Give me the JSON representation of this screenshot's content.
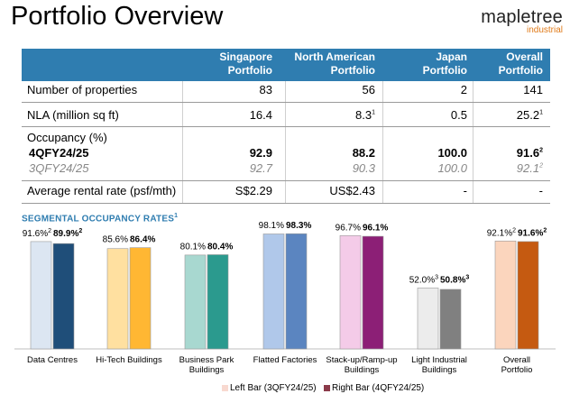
{
  "header": {
    "title": "Portfolio Overview",
    "logo_brand": "mapletree",
    "logo_sub": "industrial"
  },
  "table": {
    "columns": [
      {
        "l1": "Singapore",
        "l2": "Portfolio"
      },
      {
        "l1": "North American",
        "l2": "Portfolio"
      },
      {
        "l1": "Japan",
        "l2": "Portfolio"
      },
      {
        "l1": "Overall",
        "l2": "Portfolio"
      }
    ],
    "rows": {
      "properties": {
        "label": "Number of properties",
        "values": [
          "83",
          "56",
          "2",
          "141"
        ]
      },
      "nla": {
        "label": "NLA (million sq ft)",
        "values": [
          "16.4",
          "8.3",
          "0.5",
          "25.2"
        ],
        "sups": [
          "",
          "1",
          "",
          "1"
        ]
      },
      "occupancy": {
        "label": "Occupancy (%)"
      },
      "q4": {
        "label": "4QFY24/25",
        "values": [
          "92.9",
          "88.2",
          "100.0",
          "91.6"
        ],
        "sups": [
          "",
          "",
          "",
          "2"
        ]
      },
      "q3": {
        "label": "3QFY24/25",
        "values": [
          "92.7",
          "90.3",
          "100.0",
          "92.1"
        ],
        "sups": [
          "",
          "",
          "",
          "2"
        ]
      },
      "rent": {
        "label": "Average rental rate (psf/mth)",
        "values": [
          "S$2.29",
          "US$2.43",
          "-",
          "-"
        ]
      }
    }
  },
  "chart_data": {
    "type": "bar",
    "title": "SEGMENTAL OCCUPANCY RATES",
    "title_sup": "1",
    "categories": [
      "Data Centres",
      "Hi-Tech Buildings",
      "Business Park Buildings",
      "Flatted Factories",
      "Stack-up/Ramp-up Buildings",
      "Light Industrial Buildings",
      "Overall Portfolio"
    ],
    "category_lines": [
      [
        "Data Centres"
      ],
      [
        "Hi-Tech Buildings"
      ],
      [
        "Business Park",
        "Buildings"
      ],
      [
        "Flatted Factories"
      ],
      [
        "Stack-up/Ramp-up",
        "Buildings"
      ],
      [
        "Light Industrial",
        "Buildings"
      ],
      [
        "Overall",
        "Portfolio"
      ]
    ],
    "series": [
      {
        "name": "Left Bar (3QFY24/25)",
        "values": [
          91.6,
          85.6,
          80.1,
          98.1,
          96.7,
          52.0,
          92.1
        ],
        "labels": [
          "91.6%",
          "85.6%",
          "80.1%",
          "98.1%",
          "96.7%",
          "52.0%",
          "92.1%"
        ],
        "sups": [
          "2",
          "",
          "",
          "",
          "",
          "3",
          "2"
        ]
      },
      {
        "name": "Right Bar (4QFY24/25)",
        "values": [
          89.9,
          86.4,
          80.4,
          98.3,
          96.1,
          50.8,
          91.6
        ],
        "labels": [
          "89.9%",
          "86.4%",
          "80.4%",
          "98.3%",
          "96.1%",
          "50.8%",
          "91.6%"
        ],
        "sups": [
          "2",
          "",
          "",
          "",
          "",
          "3",
          "2"
        ]
      }
    ],
    "colors": {
      "left": [
        "#dce6f2",
        "#ffe0a0",
        "#a8d8d0",
        "#b0c8ea",
        "#f4cbe8",
        "#ececec",
        "#fbd5bd"
      ],
      "right": [
        "#1f4e79",
        "#ffb733",
        "#2b9a8e",
        "#5b85c0",
        "#8c1f76",
        "#808080",
        "#c55a11"
      ]
    },
    "legend": {
      "left": "Left Bar (3QFY24/25)",
      "right": "Right Bar (4QFY24/25)",
      "left_swatch": "#f8d9d0",
      "right_swatch": "#8b3a4a"
    },
    "ylim": [
      0,
      100
    ]
  }
}
